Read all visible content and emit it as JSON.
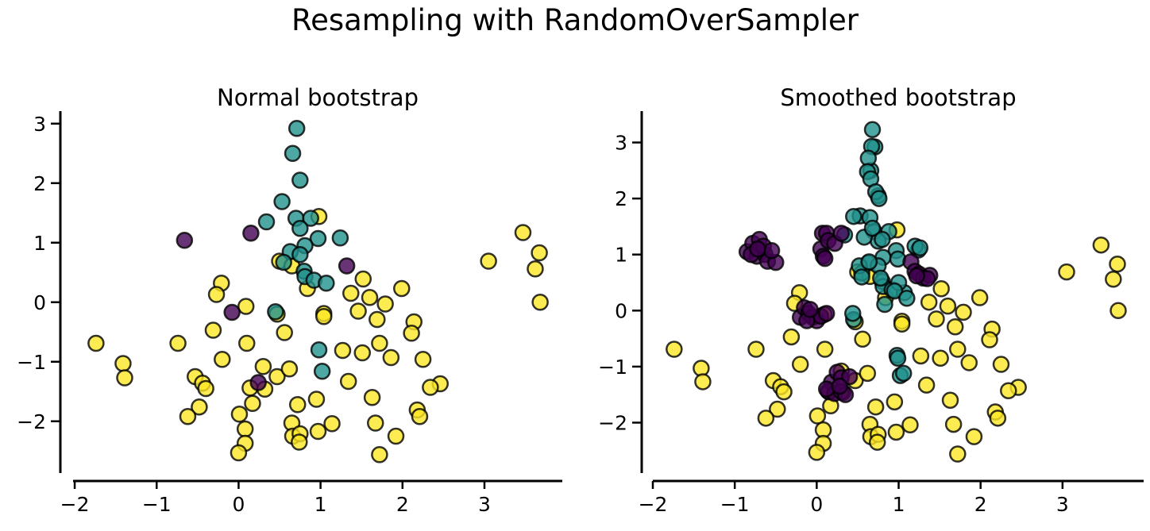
{
  "title": "Resampling with RandomOverSampler",
  "colors": {
    "class0": "#440154",
    "class1": "#21918c",
    "class2": "#fde725",
    "edge": "#000000"
  },
  "chart_data": [
    {
      "type": "scatter",
      "title": "Normal bootstrap",
      "xlabel": "",
      "ylabel": "",
      "xlim": [
        -2.02,
        3.95
      ],
      "ylim": [
        -2.87,
        3.21
      ],
      "xticks": [
        -2,
        -1,
        0,
        1,
        2,
        3
      ],
      "xtick_labels": [
        "−2",
        "−1",
        "0",
        "1",
        "2",
        "3"
      ],
      "yticks": [
        -2,
        -1,
        0,
        1,
        2,
        3
      ],
      "ytick_labels": [
        "−2",
        "−1",
        "0",
        "1",
        "2",
        "3"
      ],
      "grid": false,
      "series": [
        {
          "name": "class 2",
          "color": "#fde725",
          "points": [
            [
              -1.74,
              -0.69
            ],
            [
              -1.41,
              -1.03
            ],
            [
              -1.39,
              -1.27
            ],
            [
              -0.74,
              -0.69
            ],
            [
              -0.21,
              0.32
            ],
            [
              -0.27,
              0.13
            ],
            [
              -0.31,
              -0.47
            ],
            [
              -0.2,
              -0.96
            ],
            [
              -0.53,
              -1.25
            ],
            [
              -0.44,
              -1.36
            ],
            [
              -0.4,
              -1.45
            ],
            [
              -0.48,
              -1.76
            ],
            [
              -0.62,
              -1.92
            ],
            [
              0.09,
              -0.07
            ],
            [
              0.1,
              -0.69
            ],
            [
              0.3,
              -1.08
            ],
            [
              0.14,
              -1.44
            ],
            [
              0.32,
              -1.46
            ],
            [
              0.47,
              -1.25
            ],
            [
              0.17,
              -1.7
            ],
            [
              0.01,
              -1.88
            ],
            [
              0.08,
              -2.13
            ],
            [
              0.08,
              -2.37
            ],
            [
              0.0,
              -2.53
            ],
            [
              0.62,
              -1.12
            ],
            [
              0.56,
              -0.51
            ],
            [
              0.65,
              -2.03
            ],
            [
              0.66,
              -2.25
            ],
            [
              0.75,
              -2.21
            ],
            [
              0.74,
              -2.35
            ],
            [
              0.72,
              -1.72
            ],
            [
              0.95,
              -1.63
            ],
            [
              0.97,
              -2.17
            ],
            [
              1.14,
              -2.04
            ],
            [
              1.04,
              -0.19
            ],
            [
              1.04,
              -0.24
            ],
            [
              1.52,
              0.39
            ],
            [
              1.37,
              0.15
            ],
            [
              1.6,
              0.08
            ],
            [
              1.79,
              -0.03
            ],
            [
              1.99,
              0.23
            ],
            [
              1.46,
              -0.15
            ],
            [
              1.69,
              -0.29
            ],
            [
              2.14,
              -0.33
            ],
            [
              2.11,
              -0.52
            ],
            [
              1.72,
              -0.69
            ],
            [
              1.27,
              -0.81
            ],
            [
              1.51,
              -0.85
            ],
            [
              1.86,
              -0.93
            ],
            [
              2.25,
              -0.96
            ],
            [
              1.34,
              -1.33
            ],
            [
              2.46,
              -1.37
            ],
            [
              2.34,
              -1.43
            ],
            [
              1.63,
              -1.6
            ],
            [
              2.18,
              -1.81
            ],
            [
              2.21,
              -1.92
            ],
            [
              1.67,
              -2.03
            ],
            [
              1.92,
              -2.25
            ],
            [
              1.72,
              -2.56
            ],
            [
              3.05,
              0.69
            ],
            [
              3.47,
              1.17
            ],
            [
              3.67,
              0.83
            ],
            [
              3.62,
              0.56
            ],
            [
              3.68,
              0.0
            ],
            [
              0.98,
              1.44
            ],
            [
              0.84,
              0.23
            ],
            [
              0.5,
              0.69
            ],
            [
              0.65,
              0.61
            ],
            [
              0.47,
              -0.2
            ]
          ]
        },
        {
          "name": "class 1",
          "color": "#21918c",
          "points": [
            [
              0.71,
              2.92
            ],
            [
              0.66,
              2.5
            ],
            [
              0.75,
              2.05
            ],
            [
              0.53,
              1.69
            ],
            [
              0.34,
              1.35
            ],
            [
              0.7,
              1.41
            ],
            [
              0.88,
              1.41
            ],
            [
              0.75,
              1.24
            ],
            [
              0.97,
              1.07
            ],
            [
              1.24,
              1.08
            ],
            [
              0.81,
              0.95
            ],
            [
              0.63,
              0.85
            ],
            [
              0.75,
              0.8
            ],
            [
              0.55,
              0.67
            ],
            [
              0.8,
              0.52
            ],
            [
              0.81,
              0.43
            ],
            [
              0.92,
              0.37
            ],
            [
              1.07,
              0.32
            ],
            [
              0.45,
              -0.16
            ],
            [
              0.98,
              -0.8
            ],
            [
              1.02,
              -1.16
            ]
          ]
        },
        {
          "name": "class 0",
          "color": "#440154",
          "points": [
            [
              -0.66,
              1.04
            ],
            [
              0.15,
              1.16
            ],
            [
              1.32,
              0.61
            ],
            [
              -0.08,
              -0.17
            ],
            [
              0.24,
              -1.35
            ]
          ]
        }
      ]
    },
    {
      "type": "scatter",
      "title": "Smoothed bootstrap",
      "xlabel": "",
      "ylabel": "",
      "xlim": [
        -2.0,
        3.99
      ],
      "ylim": [
        -2.9,
        3.56
      ],
      "xticks": [
        -2,
        -1,
        0,
        1,
        2,
        3
      ],
      "xtick_labels": [
        "−2",
        "−1",
        "0",
        "1",
        "2",
        "3"
      ],
      "yticks": [
        -2,
        -1,
        0,
        1,
        2,
        3
      ],
      "ytick_labels": [
        "−2",
        "−1",
        "0",
        "1",
        "2",
        "3"
      ],
      "grid": false,
      "series": [
        {
          "name": "class 2",
          "color": "#fde725",
          "points": [
            [
              -1.74,
              -0.69
            ],
            [
              -1.41,
              -1.03
            ],
            [
              -1.39,
              -1.27
            ],
            [
              -0.74,
              -0.69
            ],
            [
              -0.21,
              0.32
            ],
            [
              -0.27,
              0.13
            ],
            [
              -0.31,
              -0.47
            ],
            [
              -0.2,
              -0.96
            ],
            [
              -0.53,
              -1.25
            ],
            [
              -0.44,
              -1.36
            ],
            [
              -0.4,
              -1.45
            ],
            [
              -0.48,
              -1.76
            ],
            [
              -0.62,
              -1.92
            ],
            [
              0.09,
              -0.07
            ],
            [
              0.1,
              -0.69
            ],
            [
              0.3,
              -1.08
            ],
            [
              0.14,
              -1.44
            ],
            [
              0.32,
              -1.46
            ],
            [
              0.47,
              -1.25
            ],
            [
              0.17,
              -1.7
            ],
            [
              0.01,
              -1.88
            ],
            [
              0.08,
              -2.13
            ],
            [
              0.08,
              -2.37
            ],
            [
              0.0,
              -2.53
            ],
            [
              0.62,
              -1.12
            ],
            [
              0.56,
              -0.51
            ],
            [
              0.65,
              -2.03
            ],
            [
              0.66,
              -2.25
            ],
            [
              0.75,
              -2.21
            ],
            [
              0.74,
              -2.35
            ],
            [
              0.72,
              -1.72
            ],
            [
              0.95,
              -1.63
            ],
            [
              0.97,
              -2.17
            ],
            [
              1.14,
              -2.04
            ],
            [
              1.04,
              -0.19
            ],
            [
              1.04,
              -0.24
            ],
            [
              1.52,
              0.39
            ],
            [
              1.37,
              0.15
            ],
            [
              1.6,
              0.08
            ],
            [
              1.79,
              -0.03
            ],
            [
              1.99,
              0.23
            ],
            [
              1.46,
              -0.15
            ],
            [
              1.69,
              -0.29
            ],
            [
              2.14,
              -0.33
            ],
            [
              2.11,
              -0.52
            ],
            [
              1.72,
              -0.69
            ],
            [
              1.27,
              -0.81
            ],
            [
              1.51,
              -0.85
            ],
            [
              1.86,
              -0.93
            ],
            [
              2.25,
              -0.96
            ],
            [
              1.34,
              -1.33
            ],
            [
              2.46,
              -1.37
            ],
            [
              2.34,
              -1.43
            ],
            [
              1.63,
              -1.6
            ],
            [
              2.18,
              -1.81
            ],
            [
              2.21,
              -1.92
            ],
            [
              1.67,
              -2.03
            ],
            [
              1.92,
              -2.25
            ],
            [
              1.72,
              -2.56
            ],
            [
              3.05,
              0.69
            ],
            [
              3.47,
              1.17
            ],
            [
              3.67,
              0.83
            ],
            [
              3.62,
              0.56
            ],
            [
              3.68,
              0.0
            ],
            [
              0.98,
              1.44
            ],
            [
              0.84,
              0.23
            ],
            [
              0.5,
              0.69
            ],
            [
              0.65,
              0.61
            ],
            [
              0.47,
              -0.2
            ]
          ]
        },
        {
          "name": "class 1",
          "color": "#21918c",
          "points": [
            [
              0.71,
              2.92
            ],
            [
              0.66,
              2.5
            ],
            [
              0.75,
              2.05
            ],
            [
              0.53,
              1.69
            ],
            [
              0.34,
              1.35
            ],
            [
              0.7,
              1.41
            ],
            [
              0.88,
              1.41
            ],
            [
              0.75,
              1.24
            ],
            [
              0.97,
              1.07
            ],
            [
              1.24,
              1.08
            ],
            [
              0.81,
              0.95
            ],
            [
              0.63,
              0.85
            ],
            [
              0.75,
              0.8
            ],
            [
              0.55,
              0.67
            ],
            [
              0.8,
              0.52
            ],
            [
              0.81,
              0.43
            ],
            [
              0.92,
              0.37
            ],
            [
              1.07,
              0.32
            ],
            [
              0.45,
              -0.16
            ],
            [
              0.98,
              -0.8
            ],
            [
              1.02,
              -1.16
            ],
            [
              0.68,
              3.23
            ],
            [
              0.67,
              2.93
            ],
            [
              0.63,
              2.72
            ],
            [
              0.62,
              2.48
            ],
            [
              0.66,
              2.35
            ],
            [
              0.72,
              2.12
            ],
            [
              0.76,
              2.0
            ],
            [
              0.65,
              1.66
            ],
            [
              0.45,
              1.68
            ],
            [
              0.58,
              1.31
            ],
            [
              0.68,
              1.47
            ],
            [
              0.8,
              1.27
            ],
            [
              0.99,
              0.92
            ],
            [
              1.2,
              1.15
            ],
            [
              1.26,
              1.12
            ],
            [
              0.52,
              0.8
            ],
            [
              0.64,
              0.87
            ],
            [
              0.55,
              0.6
            ],
            [
              0.78,
              0.58
            ],
            [
              1.0,
              0.5
            ],
            [
              0.95,
              0.35
            ],
            [
              1.1,
              0.22
            ],
            [
              0.83,
              0.11
            ],
            [
              0.44,
              -0.05
            ],
            [
              0.99,
              -0.85
            ],
            [
              1.06,
              -1.12
            ]
          ]
        },
        {
          "name": "class 0",
          "color": "#440154",
          "points": [
            [
              -0.85,
              1.05
            ],
            [
              -0.78,
              1.2
            ],
            [
              -0.7,
              1.27
            ],
            [
              -0.73,
              0.97
            ],
            [
              -0.63,
              1.0
            ],
            [
              -0.6,
              0.88
            ],
            [
              -0.5,
              0.86
            ],
            [
              -0.8,
              1.0
            ],
            [
              -0.65,
              1.15
            ],
            [
              -0.55,
              1.07
            ],
            [
              -0.72,
              1.1
            ],
            [
              0.07,
              1.38
            ],
            [
              0.12,
              1.38
            ],
            [
              0.05,
              1.1
            ],
            [
              0.08,
              0.97
            ],
            [
              0.14,
              1.25
            ],
            [
              0.22,
              1.2
            ],
            [
              0.3,
              1.38
            ],
            [
              0.1,
              0.93
            ],
            [
              1.15,
              0.87
            ],
            [
              1.2,
              0.7
            ],
            [
              1.25,
              0.65
            ],
            [
              1.3,
              0.58
            ],
            [
              1.38,
              0.63
            ],
            [
              1.35,
              0.57
            ],
            [
              1.22,
              0.62
            ],
            [
              -0.2,
              -0.12
            ],
            [
              -0.15,
              0.05
            ],
            [
              -0.1,
              -0.05
            ],
            [
              -0.05,
              -0.12
            ],
            [
              0.0,
              -0.18
            ],
            [
              0.05,
              -0.1
            ],
            [
              -0.12,
              -0.18
            ],
            [
              0.12,
              -0.05
            ],
            [
              -0.08,
              0.02
            ],
            [
              0.18,
              -1.28
            ],
            [
              0.25,
              -1.1
            ],
            [
              0.3,
              -1.2
            ],
            [
              0.4,
              -1.18
            ],
            [
              0.15,
              -1.45
            ],
            [
              0.22,
              -1.48
            ],
            [
              0.3,
              -1.45
            ],
            [
              0.35,
              -1.5
            ],
            [
              0.12,
              -1.4
            ],
            [
              0.28,
              -1.35
            ]
          ]
        }
      ]
    }
  ]
}
